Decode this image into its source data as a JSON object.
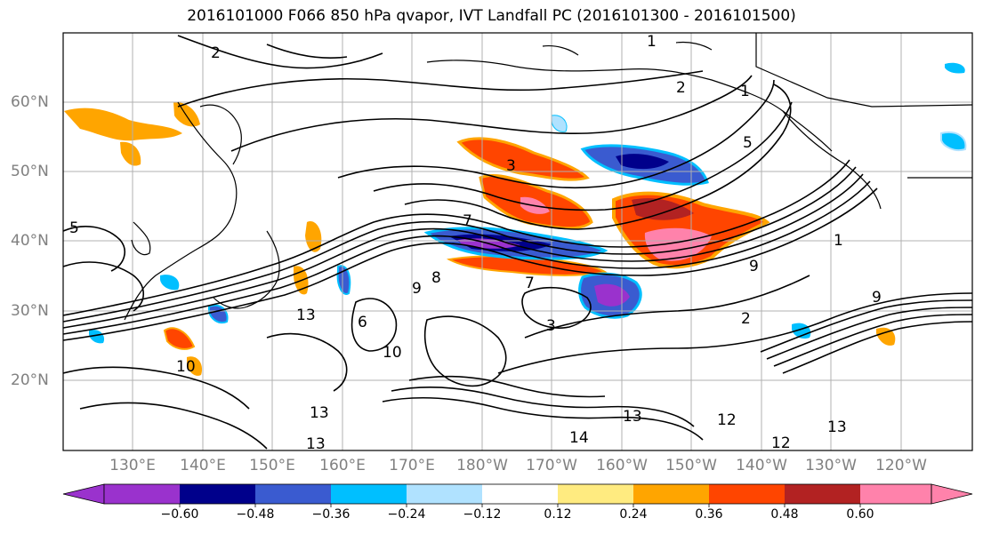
{
  "title": "2016101000 F066 850 hPa qvapor, IVT Landfall PC (2016101300 - 2016101500)",
  "lat_labels": [
    "60°N",
    "50°N",
    "40°N",
    "30°N",
    "20°N"
  ],
  "lon_labels": [
    "130°E",
    "140°E",
    "150°E",
    "160°E",
    "170°E",
    "180°W",
    "170°W",
    "160°W",
    "150°W",
    "140°W",
    "130°W",
    "120°W"
  ],
  "contour_labels": [
    "2",
    "1",
    "2",
    "1",
    "5",
    "3",
    "7",
    "9",
    "8",
    "7",
    "5",
    "1",
    "9",
    "13",
    "10",
    "6",
    "3",
    "2",
    "9",
    "13",
    "10",
    "12",
    "14",
    "13",
    "12",
    "13",
    "13"
  ],
  "colorbar": {
    "tick_labels": [
      "−0.60",
      "−0.48",
      "−0.36",
      "−0.24",
      "−0.12",
      "0.12",
      "0.24",
      "0.36",
      "0.48",
      "0.60"
    ],
    "colors": [
      "#9a32cd",
      "#00008b",
      "#3a5bd0",
      "#00bfff",
      "#b0e2ff",
      "#ffffff",
      "#ffeb80",
      "#ffa500",
      "#ff4500",
      "#b22222",
      "#ff82ab"
    ]
  }
}
